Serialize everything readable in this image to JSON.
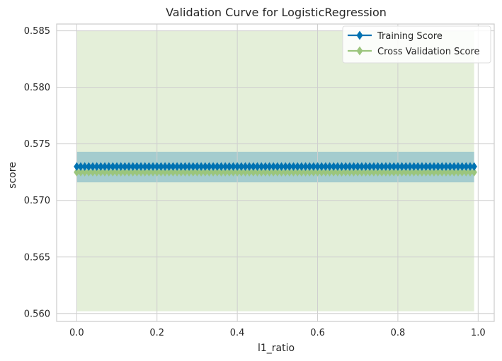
{
  "chart_data": {
    "type": "line",
    "title": "Validation Curve for LogisticRegression",
    "xlabel": "l1_ratio",
    "ylabel": "score",
    "xlim": [
      -0.05,
      1.04
    ],
    "ylim": [
      0.5593,
      0.5856
    ],
    "xticks": [
      0.0,
      0.2,
      0.4,
      0.6,
      0.8,
      1.0
    ],
    "xtick_labels": [
      "0.0",
      "0.2",
      "0.4",
      "0.6",
      "0.8",
      "1.0"
    ],
    "yticks": [
      0.56,
      0.565,
      0.57,
      0.575,
      0.58,
      0.585
    ],
    "ytick_labels": [
      "0.560",
      "0.565",
      "0.570",
      "0.575",
      "0.580",
      "0.585"
    ],
    "grid": true,
    "legend_position": "top-right",
    "x": {
      "start": 0.0,
      "stop": 0.99,
      "step": 0.01
    },
    "series": [
      {
        "name": "Training Score",
        "mean": 0.573,
        "band": [
          0.5716,
          0.5743
        ],
        "color": "#0072b2",
        "band_color": "#0072b2",
        "marker": "diamond"
      },
      {
        "name": "Cross Validation Score",
        "mean": 0.5725,
        "band": [
          0.5602,
          0.585
        ],
        "color": "#9bc57d",
        "band_color": "#b8d69a",
        "marker": "diamond"
      }
    ]
  }
}
